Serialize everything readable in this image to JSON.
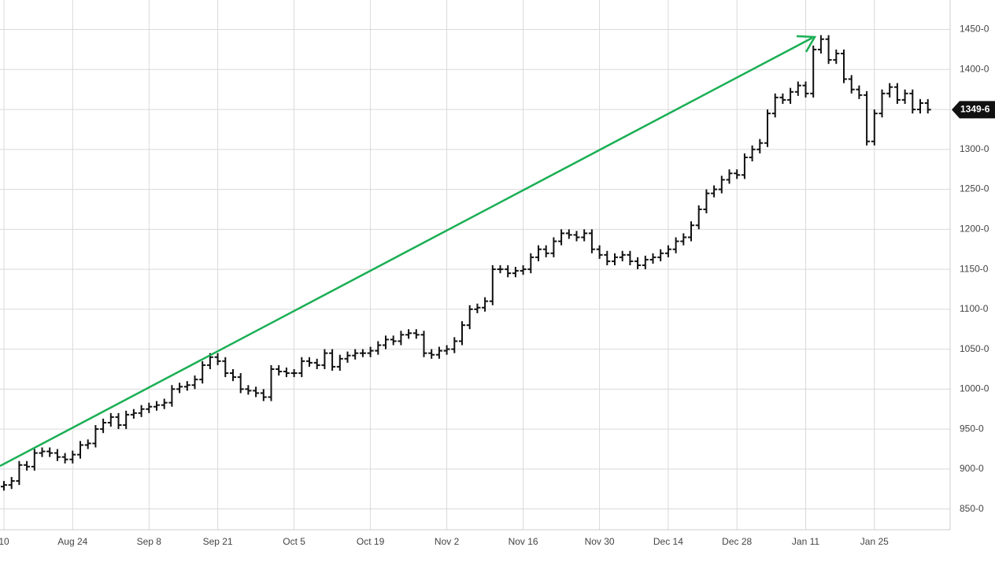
{
  "chart_data": {
    "type": "ohlc",
    "categories": [
      "10",
      null,
      null,
      null,
      null,
      null,
      null,
      null,
      null,
      "Aug 24",
      null,
      null,
      null,
      null,
      null,
      null,
      null,
      null,
      null,
      "Sep 8",
      null,
      null,
      null,
      null,
      null,
      null,
      null,
      null,
      "Sep 21",
      null,
      null,
      null,
      null,
      null,
      null,
      null,
      null,
      null,
      "Oct 5",
      null,
      null,
      null,
      null,
      null,
      null,
      null,
      null,
      null,
      "Oct 19",
      null,
      null,
      null,
      null,
      null,
      null,
      null,
      null,
      null,
      "Nov 2",
      null,
      null,
      null,
      null,
      null,
      null,
      null,
      null,
      null,
      "Nov 16",
      null,
      null,
      null,
      null,
      null,
      null,
      null,
      null,
      null,
      "Nov 30",
      null,
      null,
      null,
      null,
      null,
      null,
      null,
      null,
      "Dec 14",
      null,
      null,
      null,
      null,
      null,
      null,
      null,
      null,
      "Dec 28",
      null,
      null,
      null,
      null,
      null,
      null,
      null,
      null,
      "Jan 11",
      null,
      null,
      null,
      null,
      null,
      null,
      null,
      null,
      "Jan 25",
      null,
      null,
      null,
      null,
      null,
      null,
      null
    ],
    "open": [
      878,
      880,
      885,
      905,
      903,
      920,
      922,
      920,
      915,
      912,
      918,
      930,
      932,
      950,
      958,
      965,
      955,
      968,
      970,
      975,
      978,
      980,
      983,
      1000,
      1003,
      1005,
      1012,
      1030,
      1040,
      1035,
      1020,
      1015,
      1000,
      998,
      995,
      990,
      1025,
      1022,
      1020,
      1020,
      1035,
      1033,
      1030,
      1045,
      1028,
      1038,
      1042,
      1045,
      1045,
      1048,
      1055,
      1062,
      1060,
      1068,
      1070,
      1068,
      1045,
      1043,
      1048,
      1050,
      1060,
      1080,
      1100,
      1102,
      1110,
      1150,
      1150,
      1145,
      1148,
      1150,
      1165,
      1175,
      1170,
      1185,
      1195,
      1193,
      1190,
      1195,
      1175,
      1168,
      1160,
      1165,
      1168,
      1160,
      1155,
      1162,
      1165,
      1170,
      1175,
      1185,
      1190,
      1205,
      1225,
      1245,
      1250,
      1262,
      1270,
      1268,
      1290,
      1300,
      1308,
      1345,
      1365,
      1362,
      1372,
      1380,
      1370,
      1425,
      1438,
      1412,
      1420,
      1388,
      1375,
      1368,
      1310,
      1345,
      1370,
      1378,
      1362,
      1370,
      1350,
      1358
    ],
    "high": [
      885,
      890,
      910,
      910,
      925,
      927,
      927,
      925,
      920,
      923,
      935,
      937,
      955,
      963,
      970,
      970,
      973,
      975,
      980,
      983,
      985,
      988,
      1005,
      1008,
      1010,
      1017,
      1035,
      1045,
      1045,
      1040,
      1025,
      1020,
      1005,
      1003,
      1000,
      1030,
      1030,
      1027,
      1025,
      1040,
      1040,
      1038,
      1050,
      1050,
      1043,
      1047,
      1050,
      1050,
      1053,
      1060,
      1067,
      1067,
      1073,
      1075,
      1075,
      1073,
      1050,
      1053,
      1055,
      1065,
      1085,
      1105,
      1107,
      1115,
      1155,
      1155,
      1155,
      1153,
      1155,
      1170,
      1180,
      1180,
      1190,
      1200,
      1200,
      1198,
      1200,
      1200,
      1180,
      1173,
      1170,
      1173,
      1173,
      1165,
      1167,
      1170,
      1175,
      1180,
      1190,
      1195,
      1210,
      1230,
      1250,
      1255,
      1267,
      1275,
      1275,
      1295,
      1305,
      1313,
      1350,
      1370,
      1370,
      1377,
      1385,
      1385,
      1430,
      1443,
      1443,
      1425,
      1425,
      1393,
      1380,
      1373,
      1350,
      1375,
      1383,
      1383,
      1375,
      1375,
      1363,
      1363
    ],
    "low": [
      873,
      875,
      880,
      898,
      898,
      915,
      915,
      910,
      907,
      907,
      913,
      925,
      927,
      945,
      953,
      950,
      950,
      963,
      965,
      970,
      973,
      975,
      978,
      995,
      998,
      1000,
      1007,
      1025,
      1030,
      1015,
      1010,
      995,
      993,
      990,
      985,
      985,
      1017,
      1015,
      1015,
      1015,
      1028,
      1025,
      1025,
      1023,
      1023,
      1033,
      1037,
      1040,
      1040,
      1043,
      1050,
      1055,
      1055,
      1063,
      1063,
      1040,
      1038,
      1038,
      1043,
      1045,
      1055,
      1075,
      1095,
      1097,
      1105,
      1145,
      1140,
      1140,
      1143,
      1145,
      1160,
      1165,
      1165,
      1180,
      1188,
      1185,
      1185,
      1170,
      1163,
      1155,
      1155,
      1160,
      1155,
      1150,
      1150,
      1157,
      1160,
      1165,
      1170,
      1180,
      1185,
      1200,
      1220,
      1240,
      1245,
      1257,
      1263,
      1263,
      1285,
      1295,
      1303,
      1340,
      1357,
      1357,
      1367,
      1365,
      1365,
      1420,
      1407,
      1407,
      1383,
      1370,
      1363,
      1305,
      1305,
      1340,
      1365,
      1357,
      1357,
      1345,
      1345,
      1345
    ],
    "close": [
      880,
      885,
      905,
      903,
      920,
      922,
      920,
      915,
      912,
      918,
      930,
      932,
      950,
      958,
      965,
      955,
      968,
      970,
      975,
      978,
      980,
      983,
      1000,
      1003,
      1005,
      1012,
      1030,
      1040,
      1035,
      1020,
      1015,
      1000,
      998,
      995,
      990,
      1025,
      1022,
      1020,
      1020,
      1035,
      1033,
      1030,
      1045,
      1028,
      1038,
      1042,
      1045,
      1045,
      1048,
      1055,
      1062,
      1060,
      1068,
      1070,
      1068,
      1045,
      1043,
      1048,
      1050,
      1060,
      1080,
      1100,
      1102,
      1110,
      1150,
      1150,
      1145,
      1148,
      1150,
      1165,
      1175,
      1170,
      1185,
      1195,
      1193,
      1190,
      1195,
      1175,
      1168,
      1160,
      1165,
      1168,
      1160,
      1155,
      1162,
      1165,
      1170,
      1175,
      1185,
      1190,
      1205,
      1225,
      1245,
      1250,
      1262,
      1270,
      1268,
      1290,
      1300,
      1308,
      1345,
      1365,
      1362,
      1372,
      1380,
      1370,
      1425,
      1438,
      1412,
      1420,
      1388,
      1375,
      1368,
      1310,
      1345,
      1370,
      1378,
      1362,
      1370,
      1350,
      1358,
      1349.75
    ],
    "color": "#111111",
    "ylim": [
      824,
      1487
    ],
    "yticks": [
      {
        "value": 1450,
        "label": "1450-0"
      },
      {
        "value": 1400,
        "label": "1400-0"
      },
      {
        "value": 1350,
        "label": "1350-0"
      },
      {
        "value": 1300,
        "label": "1300-0"
      },
      {
        "value": 1250,
        "label": "1250-0"
      },
      {
        "value": 1200,
        "label": "1200-0"
      },
      {
        "value": 1150,
        "label": "1150-0"
      },
      {
        "value": 1100,
        "label": "1100-0"
      },
      {
        "value": 1050,
        "label": "1050-0"
      },
      {
        "value": 1000,
        "label": "1000-0"
      },
      {
        "value": 950,
        "label": "950-0"
      },
      {
        "value": 900,
        "label": "900-0"
      },
      {
        "value": 850,
        "label": "850-0"
      }
    ],
    "last_price": {
      "value": 1349.75,
      "label": "1349-6"
    },
    "grid": true
  }
}
